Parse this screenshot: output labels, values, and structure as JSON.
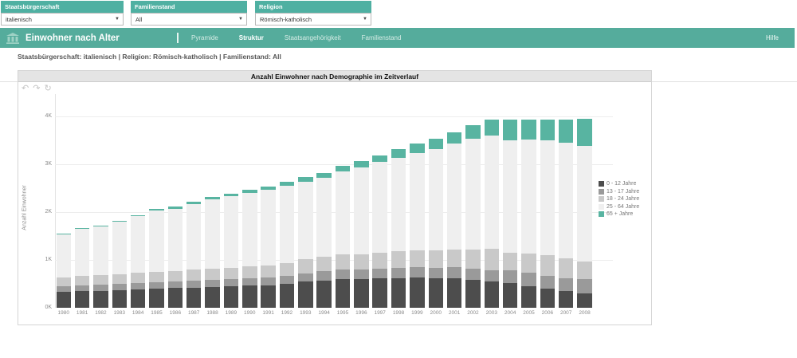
{
  "filters": [
    {
      "label": "Staatsbürgerschaft",
      "value": "italienisch"
    },
    {
      "label": "Familienstand",
      "value": "All"
    },
    {
      "label": "Religion",
      "value": "Römisch-katholisch"
    }
  ],
  "header": {
    "title": "Einwohner nach Alter",
    "separator": "|",
    "tabs": [
      {
        "label": "Pyramide",
        "active": false
      },
      {
        "label": "Struktur",
        "active": true
      },
      {
        "label": "Staatsangehörigkeit",
        "active": false
      },
      {
        "label": "Familienstand",
        "active": false
      }
    ],
    "help_label": "Hilfe",
    "logo": "bank-building-icon"
  },
  "breadcrumb": "Staatsbürgerschaft: italienisch | Religion: Römisch-katholisch | Familienstand: All",
  "panel": {
    "title": "Anzahl Einwohner nach Demographie im Zeitverlauf",
    "toolbar": {
      "undo": "↶",
      "redo": "↷",
      "refresh": "↻"
    }
  },
  "colors": {
    "accent_teal": "#55ac9c",
    "filter_teal": "#4fb0a2",
    "panel_title_bg": "#e4e4e4"
  },
  "chart_data": {
    "type": "bar",
    "stacked": true,
    "title": "Anzahl Einwohner nach Demographie im Zeitverlauf",
    "xlabel": "",
    "ylabel": "Anzahl Einwohner",
    "ylim": [
      0,
      4000
    ],
    "ytick_labels": [
      "0K",
      "1K",
      "2K",
      "3K",
      "4K"
    ],
    "grid": true,
    "legend_position": "right",
    "categories": [
      1980,
      1981,
      1982,
      1983,
      1984,
      1985,
      1986,
      1987,
      1988,
      1989,
      1990,
      1991,
      1992,
      1993,
      1994,
      1995,
      1996,
      1997,
      1998,
      1999,
      2000,
      2001,
      2002,
      2003,
      2004,
      2005,
      2006,
      2007,
      2008
    ],
    "series": [
      {
        "name": "0 - 12 Jahre",
        "color": "#4d4d4d",
        "values": [
          330,
          345,
          355,
          370,
          385,
          400,
          410,
          425,
          440,
          450,
          460,
          475,
          500,
          545,
          575,
          605,
          595,
          610,
          625,
          640,
          615,
          610,
          580,
          555,
          515,
          450,
          405,
          350,
          300
        ]
      },
      {
        "name": "13 - 17 Jahre",
        "color": "#9a9a9a",
        "values": [
          120,
          125,
          125,
          130,
          135,
          140,
          140,
          145,
          150,
          155,
          160,
          165,
          170,
          180,
          185,
          190,
          200,
          205,
          210,
          215,
          225,
          245,
          240,
          230,
          275,
          290,
          270,
          260,
          300
        ]
      },
      {
        "name": "18 - 24 Jahre",
        "color": "#c9c9c9",
        "values": [
          190,
          195,
          200,
          205,
          210,
          215,
          220,
          225,
          230,
          235,
          240,
          250,
          260,
          300,
          310,
          320,
          330,
          340,
          345,
          350,
          355,
          360,
          400,
          450,
          365,
          395,
          420,
          430,
          370
        ]
      },
      {
        "name": "25 - 64 Jahre",
        "color": "#efefef",
        "values": [
          890,
          980,
          1015,
          1090,
          1180,
          1280,
          1295,
          1370,
          1445,
          1490,
          1545,
          1575,
          1620,
          1615,
          1650,
          1740,
          1805,
          1890,
          1960,
          2030,
          2125,
          2215,
          2320,
          2365,
          2345,
          2375,
          2400,
          2410,
          2420
        ]
      },
      {
        "name": "65 + Jahre",
        "color": "#58b4a1",
        "values": [
          20,
          25,
          25,
          30,
          30,
          35,
          45,
          45,
          55,
          60,
          65,
          65,
          80,
          90,
          100,
          115,
          130,
          145,
          170,
          195,
          220,
          245,
          280,
          330,
          440,
          430,
          445,
          480,
          560
        ]
      }
    ]
  }
}
